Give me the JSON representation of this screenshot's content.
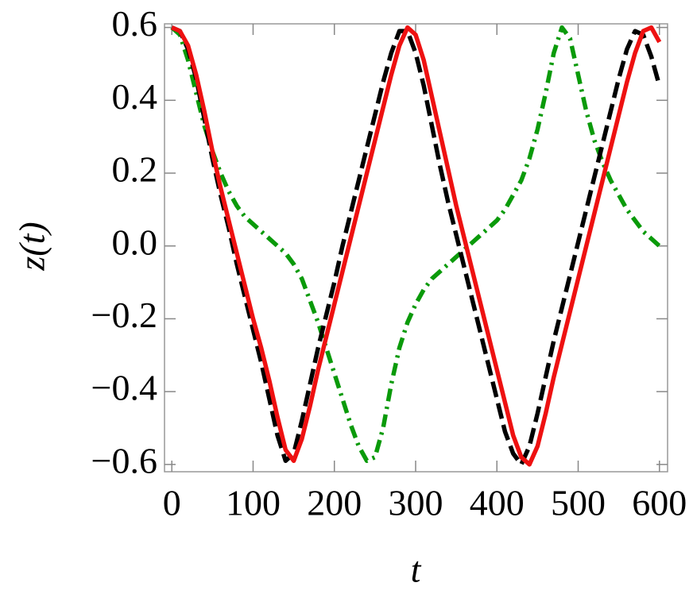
{
  "chart_data": {
    "type": "line",
    "x_label": "t",
    "y_label": "z(t)",
    "x": [
      0,
      10,
      20,
      30,
      40,
      50,
      60,
      70,
      80,
      90,
      100,
      110,
      120,
      130,
      140,
      150,
      160,
      170,
      180,
      190,
      200,
      210,
      220,
      230,
      240,
      250,
      260,
      270,
      280,
      290,
      300,
      310,
      320,
      330,
      340,
      350,
      360,
      370,
      380,
      390,
      400,
      410,
      420,
      430,
      440,
      450,
      460,
      470,
      480,
      490,
      500,
      510,
      520,
      530,
      540,
      550,
      560,
      570,
      580,
      590,
      600
    ],
    "series": [
      {
        "color": "#0a9a0a",
        "dash": "16,7,3,7",
        "values": [
          0.6,
          0.58,
          0.51,
          0.42,
          0.33,
          0.26,
          0.2,
          0.15,
          0.11,
          0.08,
          0.06,
          0.04,
          0.02,
          0.0,
          -0.02,
          -0.05,
          -0.09,
          -0.15,
          -0.21,
          -0.28,
          -0.35,
          -0.42,
          -0.49,
          -0.55,
          -0.59,
          -0.58,
          -0.5,
          -0.38,
          -0.28,
          -0.21,
          -0.16,
          -0.12,
          -0.09,
          -0.07,
          -0.05,
          -0.03,
          -0.01,
          0.01,
          0.03,
          0.05,
          0.07,
          0.1,
          0.14,
          0.18,
          0.24,
          0.32,
          0.42,
          0.53,
          0.6,
          0.57,
          0.47,
          0.37,
          0.29,
          0.23,
          0.18,
          0.14,
          0.1,
          0.07,
          0.04,
          0.02,
          0.0
        ]
      },
      {
        "color": "#000000",
        "dash": "20,8",
        "values": [
          0.6,
          0.59,
          0.54,
          0.46,
          0.35,
          0.24,
          0.14,
          0.05,
          -0.05,
          -0.14,
          -0.23,
          -0.32,
          -0.42,
          -0.52,
          -0.59,
          -0.57,
          -0.48,
          -0.38,
          -0.28,
          -0.19,
          -0.1,
          0.0,
          0.09,
          0.18,
          0.27,
          0.36,
          0.45,
          0.53,
          0.59,
          0.59,
          0.53,
          0.44,
          0.33,
          0.22,
          0.12,
          0.03,
          -0.06,
          -0.15,
          -0.24,
          -0.33,
          -0.42,
          -0.51,
          -0.57,
          -0.6,
          -0.55,
          -0.46,
          -0.36,
          -0.26,
          -0.17,
          -0.08,
          0.01,
          0.1,
          0.19,
          0.28,
          0.37,
          0.46,
          0.54,
          0.59,
          0.58,
          0.52,
          0.44
        ]
      },
      {
        "color": "#ee1111",
        "dash": "none",
        "values": [
          0.6,
          0.59,
          0.55,
          0.47,
          0.37,
          0.26,
          0.16,
          0.07,
          -0.02,
          -0.11,
          -0.2,
          -0.28,
          -0.37,
          -0.47,
          -0.56,
          -0.59,
          -0.53,
          -0.44,
          -0.34,
          -0.25,
          -0.16,
          -0.07,
          0.02,
          0.11,
          0.2,
          0.29,
          0.38,
          0.47,
          0.55,
          0.6,
          0.58,
          0.51,
          0.41,
          0.31,
          0.21,
          0.11,
          0.02,
          -0.07,
          -0.16,
          -0.25,
          -0.34,
          -0.43,
          -0.52,
          -0.58,
          -0.6,
          -0.55,
          -0.46,
          -0.36,
          -0.27,
          -0.18,
          -0.09,
          0.0,
          0.09,
          0.18,
          0.27,
          0.36,
          0.45,
          0.53,
          0.59,
          0.6,
          0.56
        ]
      }
    ],
    "xlim": [
      -9,
      610
    ],
    "ylim": [
      -0.62,
      0.61
    ],
    "xticks": [
      0,
      100,
      200,
      300,
      400,
      500,
      600
    ],
    "yticks": [
      {
        "value": -0.6,
        "label": "−0.6"
      },
      {
        "value": -0.4,
        "label": "−0.4"
      },
      {
        "value": -0.2,
        "label": "−0.2"
      },
      {
        "value": 0,
        "label": "0.0"
      },
      0.2,
      0.4,
      0.6
    ],
    "grid": false
  }
}
